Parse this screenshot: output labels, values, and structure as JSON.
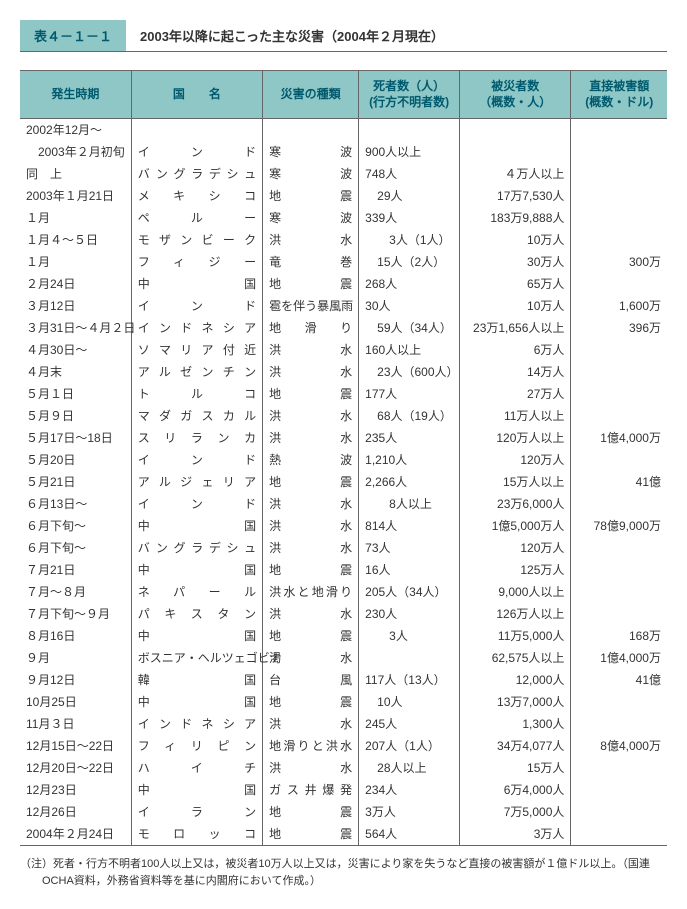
{
  "title_tag": "表４－１－１",
  "title_text": "2003年以降に起こった主な災害（2004年２月現在）",
  "columns": [
    "発生時期",
    "国　　名",
    "災害の種類",
    "死者数（人）\n(行方不明者数)",
    "被災者数\n（概数・人）",
    "直接被害額\n(概数・ドル)"
  ],
  "rows": [
    {
      "date": "2002年12月～",
      "country": "",
      "dtype": "",
      "deaths": "",
      "affected": "",
      "damage": ""
    },
    {
      "date": "　2003年２月初旬",
      "country": "インド",
      "dtype": "寒　　　波",
      "deaths": "900人以上",
      "affected": "",
      "damage": ""
    },
    {
      "date": "同　上",
      "country": "バングラデシュ",
      "dtype": "寒　　　波",
      "deaths": "748人",
      "affected": "４万人以上",
      "damage": ""
    },
    {
      "date": "2003年１月21日",
      "country": "メキシコ",
      "dtype": "地　　　震",
      "deaths": "　29人",
      "affected": "17万7,530人",
      "damage": ""
    },
    {
      "date": "１月",
      "country": "ペルー",
      "dtype": "寒　　　波",
      "deaths": "339人",
      "affected": "183万9,888人",
      "damage": ""
    },
    {
      "date": "１月４～５日",
      "country": "モザンビーク",
      "dtype": "洪　　　水",
      "deaths": "　　3人（1人）",
      "affected": "10万人",
      "damage": ""
    },
    {
      "date": "１月",
      "country": "フィジー",
      "dtype": "竜　　　巻",
      "deaths": "　15人（2人）",
      "affected": "30万人",
      "damage": "300万"
    },
    {
      "date": "２月24日",
      "country": "中　　国",
      "dtype": "地　　　震",
      "deaths": "268人",
      "affected": "65万人",
      "damage": ""
    },
    {
      "date": "３月12日",
      "country": "インド",
      "dtype": "雹を伴う暴風雨",
      "deaths": "30人",
      "affected": "10万人",
      "damage": "1,600万"
    },
    {
      "date": "３月31日～４月２日",
      "country": "インドネシア",
      "dtype": "地　滑　り",
      "deaths": "　59人（34人）",
      "affected": "23万1,656人以上",
      "damage": "396万"
    },
    {
      "date": "４月30日～",
      "country": "ソマリア付近",
      "dtype": "洪　　　水",
      "deaths": "160人以上",
      "affected": "6万人",
      "damage": ""
    },
    {
      "date": "４月末",
      "country": "アルゼンチン",
      "dtype": "洪　　　水",
      "deaths": "　23人（600人）",
      "affected": "14万人",
      "damage": ""
    },
    {
      "date": "５月１日",
      "country": "トルコ",
      "dtype": "地　　　震",
      "deaths": "177人",
      "affected": "27万人",
      "damage": ""
    },
    {
      "date": "５月９日",
      "country": "マダガスカル",
      "dtype": "洪　　　水",
      "deaths": "　68人（19人）",
      "affected": "11万人以上",
      "damage": ""
    },
    {
      "date": "５月17日～18日",
      "country": "スリランカ",
      "dtype": "洪　　　水",
      "deaths": "235人",
      "affected": "120万人以上",
      "damage": "1億4,000万"
    },
    {
      "date": "５月20日",
      "country": "インド",
      "dtype": "熱　　　波",
      "deaths": "1,210人",
      "affected": "120万人",
      "damage": ""
    },
    {
      "date": "５月21日",
      "country": "アルジェリア",
      "dtype": "地　　　震",
      "deaths": "2,266人",
      "affected": "15万人以上",
      "damage": "41億"
    },
    {
      "date": "６月13日～",
      "country": "インド",
      "dtype": "洪　　　水",
      "deaths": "　　8人以上",
      "affected": "23万6,000人",
      "damage": ""
    },
    {
      "date": "６月下旬～",
      "country": "中　　国",
      "dtype": "洪　　　水",
      "deaths": "814人",
      "affected": "1億5,000万人",
      "damage": "78億9,000万"
    },
    {
      "date": "６月下旬～",
      "country": "バングラデシュ",
      "dtype": "洪　　　水",
      "deaths": "73人",
      "affected": "120万人",
      "damage": ""
    },
    {
      "date": "７月21日",
      "country": "中　　国",
      "dtype": "地　　　震",
      "deaths": "16人",
      "affected": "125万人",
      "damage": ""
    },
    {
      "date": "７月～８月",
      "country": "ネパール",
      "dtype": "洪水と地滑り",
      "deaths": "205人（34人）",
      "affected": "9,000人以上",
      "damage": ""
    },
    {
      "date": "７月下旬～９月",
      "country": "パキスタン",
      "dtype": "洪　　　水",
      "deaths": "230人",
      "affected": "126万人以上",
      "damage": ""
    },
    {
      "date": "８月16日",
      "country": "中　　国",
      "dtype": "地　　　震",
      "deaths": "　　3人",
      "affected": "11万5,000人",
      "damage": "168万"
    },
    {
      "date": "９月",
      "country": "ボスニア・ヘルツェゴビナ",
      "dtype": "渇　　　水",
      "deaths": "",
      "affected": "62,575人以上",
      "damage": "1億4,000万"
    },
    {
      "date": "９月12日",
      "country": "韓　　国",
      "dtype": "台　　　風",
      "deaths": "117人（13人）",
      "affected": "12,000人",
      "damage": "41億"
    },
    {
      "date": "10月25日",
      "country": "中　　国",
      "dtype": "地　　　震",
      "deaths": "　10人",
      "affected": "13万7,000人",
      "damage": ""
    },
    {
      "date": "11月３日",
      "country": "インドネシア",
      "dtype": "洪　　　水",
      "deaths": "245人",
      "affected": "1,300人",
      "damage": ""
    },
    {
      "date": "12月15日～22日",
      "country": "フィリピン",
      "dtype": "地滑りと洪水",
      "deaths": "207人（1人）",
      "affected": "34万4,077人",
      "damage": "8億4,000万"
    },
    {
      "date": "12月20日～22日",
      "country": "ハイチ",
      "dtype": "洪　　　水",
      "deaths": "　28人以上",
      "affected": "15万人",
      "damage": ""
    },
    {
      "date": "12月23日",
      "country": "中　　国",
      "dtype": "ガス井爆発",
      "deaths": "234人",
      "affected": "6万4,000人",
      "damage": ""
    },
    {
      "date": "12月26日",
      "country": "イラン",
      "dtype": "地　　　震",
      "deaths": "3万人",
      "affected": "7万5,000人",
      "damage": ""
    },
    {
      "date": "2004年２月24日",
      "country": "モロッコ",
      "dtype": "地　　　震",
      "deaths": "564人",
      "affected": "3万人",
      "damage": ""
    }
  ],
  "footnote": "（注）死者・行方不明者100人以上又は，被災者10万人以上又は，災害により家を失うなど直接の被害額が１億ドル以上。（国連OCHA資料，外務省資料等を基に内閣府において作成。）"
}
